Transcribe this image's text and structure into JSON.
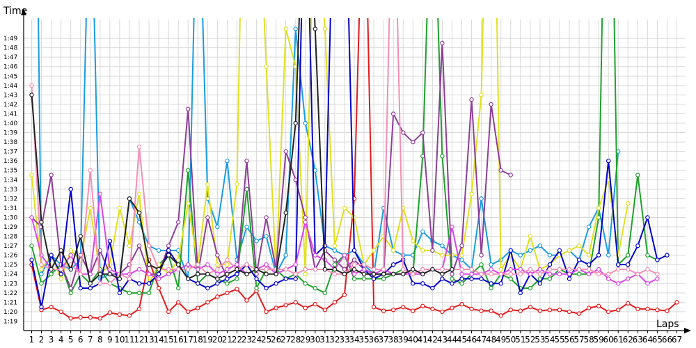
{
  "chart_data": {
    "type": "line",
    "title": "",
    "xlabel": "Laps",
    "ylabel": "Time",
    "grid": true,
    "legend": "none",
    "ylim": [
      "1:18",
      "1:51"
    ],
    "yticks": [
      "1:19",
      "1:20",
      "1:21",
      "1:22",
      "1:23",
      "1:24",
      "1:25",
      "1:26",
      "1:27",
      "1:28",
      "1:29",
      "1:30",
      "1:31",
      "1:32",
      "1:33",
      "1:34",
      "1:35",
      "1:36",
      "1:37",
      "1:38",
      "1:39",
      "1:40",
      "1:41",
      "1:42",
      "1:43",
      "1:44",
      "1:45",
      "1:46",
      "1:47",
      "1:48",
      "1:49"
    ],
    "xticks": [
      "1",
      "2",
      "3",
      "4",
      "5",
      "6",
      "7",
      "8",
      "9",
      "10",
      "11",
      "12",
      "13",
      "14",
      "15",
      "16",
      "17",
      "18",
      "19",
      "20",
      "21",
      "22",
      "23",
      "24",
      "25",
      "26",
      "27",
      "28",
      "29",
      "30",
      "31",
      "32",
      "33",
      "34",
      "35",
      "36",
      "37",
      "38",
      "39",
      "40",
      "41",
      "42",
      "43",
      "44",
      "45",
      "46",
      "47",
      "48",
      "49",
      "50",
      "51",
      "52",
      "53",
      "54",
      "55",
      "56",
      "57",
      "58",
      "59",
      "60",
      "61",
      "62",
      "63",
      "64",
      "65",
      "66",
      "67"
    ],
    "series": [
      {
        "color": "#e31a1c",
        "values": [
          85,
          80.2,
          80.5,
          80,
          79.3,
          79.4,
          79.4,
          79.3,
          79.9,
          79.7,
          79.6,
          80.3,
          85.5,
          82.5,
          80,
          81,
          80,
          80.4,
          81,
          81.6,
          82,
          82.4,
          81.2,
          82.2,
          80,
          80.4,
          80.7,
          81,
          80.4,
          80.8,
          80.2,
          81,
          81.8,
          92,
          130,
          80.5,
          80.1,
          80.2,
          80.5,
          80.1,
          80.6,
          80.3,
          80,
          80.4,
          80.8,
          80.3,
          80.1,
          80.1,
          79.6,
          80.2,
          80.1,
          80.5,
          80.1,
          80.2,
          80.2,
          80,
          79.8,
          80.4,
          80.6,
          80,
          80.2,
          80.9,
          80.3,
          80.3,
          80.2,
          80.1,
          81
        ]
      },
      {
        "color": "#1a9ce0",
        "values": [
          170,
          84,
          86,
          85,
          84.5,
          85.5,
          130,
          83.5,
          84,
          83.5,
          92,
          89.5,
          87,
          86.5,
          86.5,
          86.5,
          83.5,
          130,
          92,
          89,
          96,
          85.5,
          89,
          87.5,
          88,
          84,
          86,
          110,
          100,
          95,
          87,
          86.5,
          86,
          86.5,
          85,
          84,
          91,
          86.5,
          86,
          86,
          88.5,
          87.5,
          87,
          86,
          85.5,
          84.5,
          92,
          85,
          85.5,
          86.5,
          86,
          86.5,
          87,
          86,
          86,
          86.5,
          85.5,
          89,
          91,
          86,
          97
        ]
      },
      {
        "color": "#1fa12c",
        "values": [
          87,
          83,
          84,
          85,
          82,
          84,
          83,
          84.5,
          83,
          82.5,
          82,
          82,
          82,
          85,
          86,
          82.5,
          95,
          83,
          84,
          83.5,
          83,
          83.5,
          93,
          82.5,
          84.5,
          84.5,
          83.5,
          84,
          83,
          82.5,
          82,
          85,
          86,
          83.5,
          83.5,
          83.5,
          83.5,
          84,
          84.5,
          84,
          96.5,
          130,
          96.5,
          83.5,
          83,
          84,
          85,
          82.5,
          84,
          83.5,
          82.5,
          82.5,
          83.5,
          83.5,
          84.5,
          84,
          84,
          84,
          90,
          149,
          85,
          86,
          94.5,
          86,
          85.5
        ]
      },
      {
        "color": "#e0e020",
        "values": [
          94.5,
          84.5,
          86,
          83.5,
          86.5,
          85.5,
          91,
          84,
          85,
          91,
          87,
          92.5,
          83,
          85,
          84,
          85.5,
          91.5,
          85,
          93.5,
          85,
          85,
          93.5,
          150,
          130,
          106,
          84,
          110,
          106,
          84,
          130,
          110,
          87,
          91,
          90,
          85,
          86.5,
          88,
          86.5,
          91,
          87.5,
          86.5,
          86.5,
          86,
          86,
          86,
          92.5,
          103,
          150,
          84.5,
          86,
          84.5,
          88,
          84.5,
          85,
          86,
          86.5,
          87,
          86,
          91,
          94,
          86,
          91.5
        ]
      },
      {
        "color": "#8e3d99",
        "values": [
          90,
          89,
          94.5,
          85,
          82.5,
          86,
          84,
          86.5,
          84,
          84,
          85,
          87,
          84,
          84,
          87,
          89.5,
          101.5,
          84,
          90,
          86,
          83.5,
          84,
          96,
          84,
          90,
          84.5,
          97,
          94,
          90,
          84.5,
          86.5,
          85.5,
          84.5,
          85.5,
          84.5,
          84,
          84,
          101,
          99,
          98,
          99,
          86.5,
          108.5,
          84,
          87,
          102.5,
          86,
          102,
          95,
          94.5
        ]
      },
      {
        "color": "#0000cc",
        "values": [
          85.5,
          80.5,
          86,
          84,
          93,
          82.5,
          82.5,
          83,
          87.5,
          82,
          83.5,
          83,
          83,
          84,
          86.5,
          85,
          83.5,
          83,
          82.5,
          83,
          83.5,
          84,
          85,
          83.5,
          82.5,
          83,
          83.5,
          83.5,
          130,
          86,
          87,
          130,
          130,
          86.5,
          84.5,
          83.5,
          84,
          85,
          85.5,
          83,
          83,
          82.5,
          83.5,
          83,
          83.5,
          83.5,
          83.5,
          83,
          83,
          86.5,
          82,
          84,
          83,
          85,
          86.5,
          83.5,
          85.5,
          85,
          86,
          96,
          85,
          85,
          87,
          90,
          85.5,
          86
        ]
      },
      {
        "color": "#d946e8",
        "values": [
          90,
          86,
          84.5,
          84.5,
          86,
          84,
          84,
          92.5,
          84.5,
          84,
          84,
          84.5,
          84,
          83.5,
          84,
          84.5,
          85,
          84.5,
          85,
          84,
          84.5,
          85,
          84,
          84.5,
          85,
          84,
          84.5,
          85,
          89.5,
          86,
          85.5,
          84.5,
          86,
          84,
          84.5,
          84,
          84.5,
          84,
          84,
          84,
          84,
          84.5,
          84.5,
          89,
          84,
          84,
          84,
          84.5,
          84,
          84.5,
          84.5,
          84,
          84.5,
          84,
          84,
          84,
          84.5,
          84,
          84.5,
          83.5,
          83,
          83.5,
          84,
          83,
          83.5
        ]
      },
      {
        "color": "#f28fb5",
        "values": [
          104,
          85,
          84.5,
          84.5,
          85,
          84,
          95,
          83,
          83,
          84,
          83.5,
          97.5,
          87,
          84.5,
          84.5,
          84.5,
          84.5,
          85,
          84,
          84.5,
          85.5,
          84.5,
          85,
          84.5,
          84.5,
          84.5,
          84.5,
          84,
          84.5,
          84.5,
          84.5,
          84,
          84,
          85,
          85,
          84.5,
          84.5,
          130,
          84.5,
          84,
          84.5,
          84.5,
          84.5,
          84.5,
          84.5,
          84.5,
          84,
          84,
          84,
          84,
          84,
          84.5,
          84,
          84.5,
          84.5,
          84.5,
          84.5,
          84.5,
          84,
          84,
          84.5,
          84.5,
          84,
          84.5,
          84
        ]
      },
      {
        "color": "#222222",
        "values": [
          103,
          89.5,
          84.5,
          86.5,
          84.5,
          88,
          83,
          84,
          84,
          83.5,
          92,
          90.5,
          85,
          84.5,
          86,
          85,
          83.5,
          84,
          84,
          83.5,
          84,
          84.5,
          84,
          84.5,
          84,
          84,
          90.5,
          100,
          130,
          110,
          84.5,
          84.5,
          84,
          84.5,
          84,
          84,
          84,
          84,
          84,
          84.5,
          84,
          84.5,
          84,
          84.5
        ]
      }
    ]
  }
}
